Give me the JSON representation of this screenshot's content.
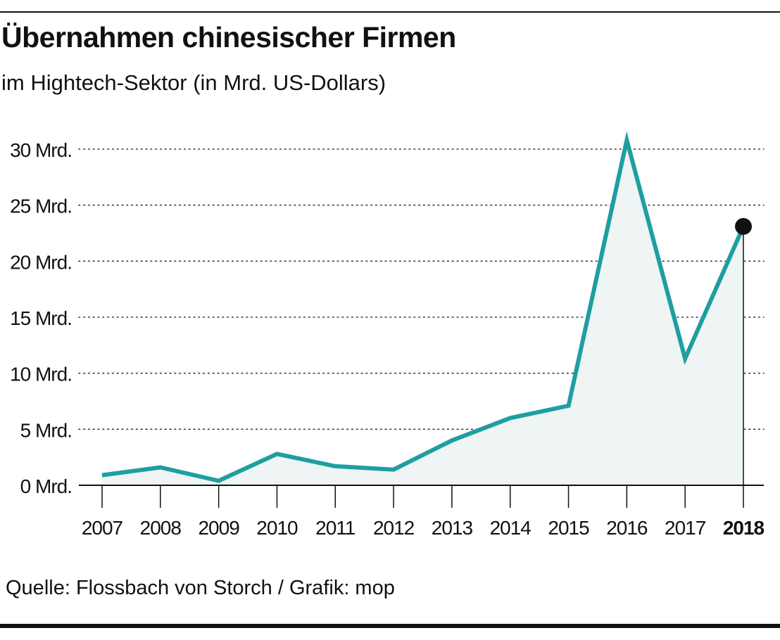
{
  "header": {
    "title": "Übernahmen chinesischer Firmen",
    "subtitle": "im Hightech-Sektor (in Mrd. US-Dollars)"
  },
  "footer": {
    "source": "Quelle: Flossbach von Storch / Grafik: mop"
  },
  "colors": {
    "line": "#1f9ea0",
    "area": "#eef5f4",
    "text": "#111111",
    "grid": "#333333"
  },
  "chart_data": {
    "type": "area",
    "title": "Übernahmen chinesischer Firmen",
    "subtitle": "im Hightech-Sektor (in Mrd. US-Dollars)",
    "x": [
      "2007",
      "2008",
      "2009",
      "2010",
      "2011",
      "2012",
      "2013",
      "2014",
      "2015",
      "2016",
      "2017",
      "2018"
    ],
    "series": [
      {
        "values": [
          0.9,
          1.6,
          0.4,
          2.8,
          1.7,
          1.4,
          4.0,
          6.0,
          7.1,
          30.8,
          11.3,
          23.1
        ]
      }
    ],
    "ylim": [
      0,
      30
    ],
    "yticks": [
      0,
      5,
      10,
      15,
      20,
      25,
      30
    ],
    "ytick_labels": [
      "0 Mrd.",
      "5 Mrd.",
      "10 Mrd.",
      "15 Mrd.",
      "20 Mrd.",
      "25 Mrd.",
      "30 Mrd."
    ],
    "highlight": "2018",
    "grid": true,
    "legend": "none"
  }
}
